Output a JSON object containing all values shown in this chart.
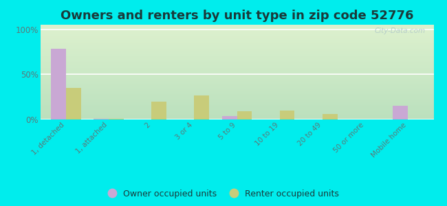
{
  "title": "Owners and renters by unit type in zip code 52776",
  "categories": [
    "1, detached",
    "1, attached",
    "2",
    "3 or 4",
    "5 to 9",
    "10 to 19",
    "20 to 49",
    "50 or more",
    "Mobile home"
  ],
  "owner_values": [
    78,
    1,
    0,
    0,
    4,
    0,
    0,
    0,
    15
  ],
  "renter_values": [
    35,
    1,
    20,
    27,
    9,
    10,
    6,
    0,
    0
  ],
  "owner_color": "#c9a8d4",
  "renter_color": "#c8cc7a",
  "background_color": "#00eded",
  "ylabel_ticks": [
    "0%",
    "50%",
    "100%"
  ],
  "ytick_vals": [
    0,
    50,
    100
  ],
  "ylim": [
    0,
    105
  ],
  "legend_owner": "Owner occupied units",
  "legend_renter": "Renter occupied units",
  "title_fontsize": 13,
  "title_color": "#1a3a3a",
  "bar_width": 0.35,
  "watermark": "City-Data.com",
  "tick_label_color": "#5a7a7a",
  "grid_color": "#ffffff"
}
